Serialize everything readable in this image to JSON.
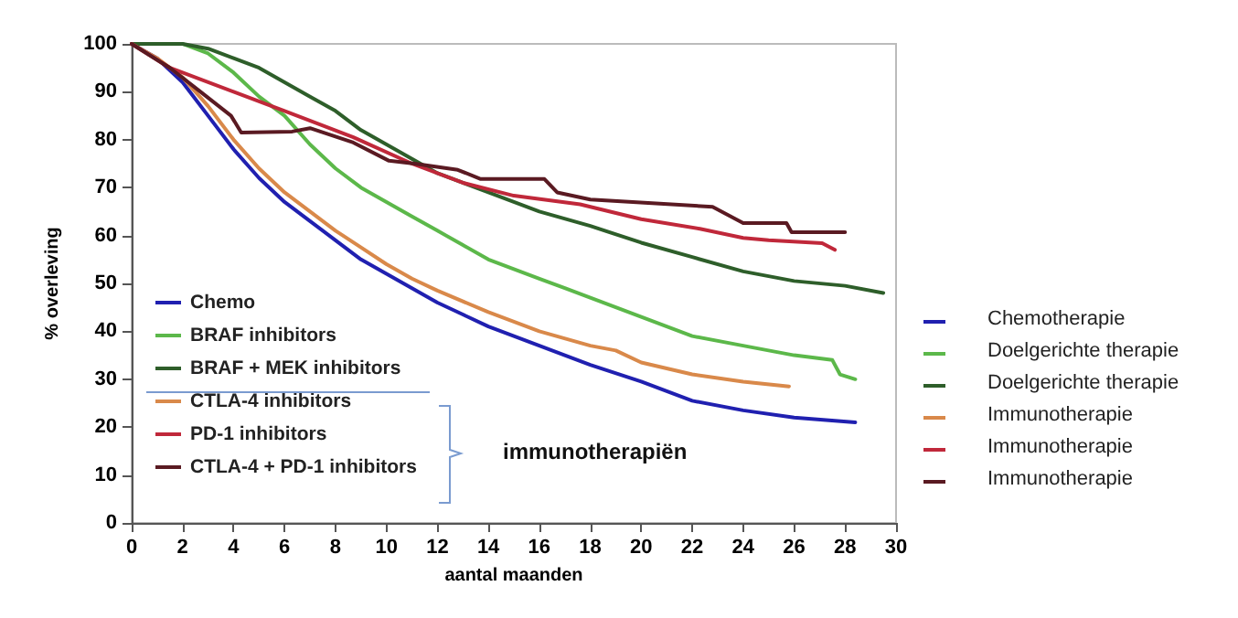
{
  "chart_data": {
    "type": "line",
    "xlabel": "aantal maanden",
    "ylabel": "% overleving",
    "xlim": [
      0,
      30
    ],
    "xticks": [
      0,
      2,
      4,
      6,
      8,
      10,
      12,
      14,
      16,
      18,
      20,
      22,
      24,
      26,
      28,
      30
    ],
    "ylim": [
      0,
      100
    ],
    "yticks": [
      0,
      10,
      20,
      30,
      40,
      50,
      60,
      70,
      80,
      90,
      100
    ],
    "grid": false,
    "legend": "bottom left",
    "marker": "none",
    "line_style": "solid",
    "series": [
      {
        "name": "Chemo",
        "color": "#2020b0",
        "x": [
          0,
          1,
          2,
          3,
          4,
          5,
          6,
          7,
          8,
          9,
          10,
          11,
          12,
          13,
          14,
          15,
          16,
          18,
          20,
          22,
          24,
          26,
          28.4
        ],
        "values": [
          100,
          97,
          92,
          85,
          78,
          72,
          67,
          63,
          59,
          55,
          52,
          49,
          46,
          43.5,
          41,
          39,
          37,
          33,
          29.5,
          25.5,
          23.5,
          22,
          21
        ]
      },
      {
        "name": "BRAF inhibitors",
        "color": "#5cb84a",
        "x": [
          0,
          2,
          3,
          4,
          5,
          6,
          7,
          8,
          9,
          10,
          11,
          12,
          13,
          14,
          16,
          17,
          18,
          20,
          22,
          24,
          26,
          27.5,
          27.8,
          28.4
        ],
        "values": [
          100,
          100,
          98,
          94,
          89,
          85,
          79,
          74,
          70,
          67,
          64,
          61,
          58,
          55,
          51,
          49,
          47,
          43,
          39,
          37,
          35,
          34,
          31,
          30
        ]
      },
      {
        "name": "BRAF + MEK inhibitors",
        "color": "#2e5e2a",
        "x": [
          0,
          2,
          3,
          4,
          5,
          6,
          7,
          8,
          9,
          10,
          11,
          12,
          13,
          14,
          15,
          16,
          18,
          20,
          22,
          24,
          26,
          28,
          29.5
        ],
        "values": [
          100,
          100,
          99,
          97,
          95,
          92,
          89,
          86,
          82,
          79,
          76,
          73,
          71,
          69,
          67,
          65,
          62,
          58.5,
          55.5,
          52.5,
          50.5,
          49.5,
          48
        ]
      },
      {
        "name": "CTLA-4 inhibitors",
        "color": "#d9894a",
        "x": [
          0,
          1,
          2,
          3,
          4,
          5,
          6,
          7,
          8,
          9,
          10,
          11,
          12,
          14,
          16,
          18,
          19,
          20,
          22,
          24,
          25.8
        ],
        "values": [
          100,
          97,
          93,
          87,
          80,
          74,
          69,
          65,
          61,
          57.5,
          54,
          51,
          48.5,
          44,
          40,
          37,
          36,
          33.5,
          31,
          29.5,
          28.5
        ]
      },
      {
        "name": "PD-1 inhibitors",
        "color": "#c0283a",
        "x": [
          0,
          1.5,
          4,
          6,
          8.7,
          11,
          13,
          15,
          17.6,
          20,
          22.3,
          24,
          25,
          27.1,
          27.6
        ],
        "values": [
          100,
          95,
          90,
          86,
          80.5,
          75,
          71,
          68.3,
          66.5,
          63.4,
          61.4,
          59.5,
          59,
          58.4,
          57
        ]
      },
      {
        "name": "CTLA-4 + PD-1 inhibitors",
        "color": "#5a1a22",
        "x": [
          0,
          1.5,
          2.7,
          3.9,
          4.3,
          6.3,
          7,
          8.7,
          10.1,
          11.1,
          12.8,
          13.7,
          16.2,
          16.7,
          18,
          22.8,
          24,
          25.7,
          25.9,
          28
        ],
        "values": [
          100,
          95,
          90,
          85,
          81.5,
          81.7,
          82.4,
          79.4,
          75.6,
          75,
          73.7,
          71.8,
          71.8,
          69,
          67.5,
          66,
          62.6,
          62.6,
          60.7,
          60.7
        ]
      }
    ],
    "annotations": [
      "Chemotherapie",
      "Doelgerichte therapie",
      "Doelgerichte therapie",
      "Immunotherapie",
      "Immunotherapie",
      "Immunotherapie",
      "immunotherapiën"
    ]
  }
}
